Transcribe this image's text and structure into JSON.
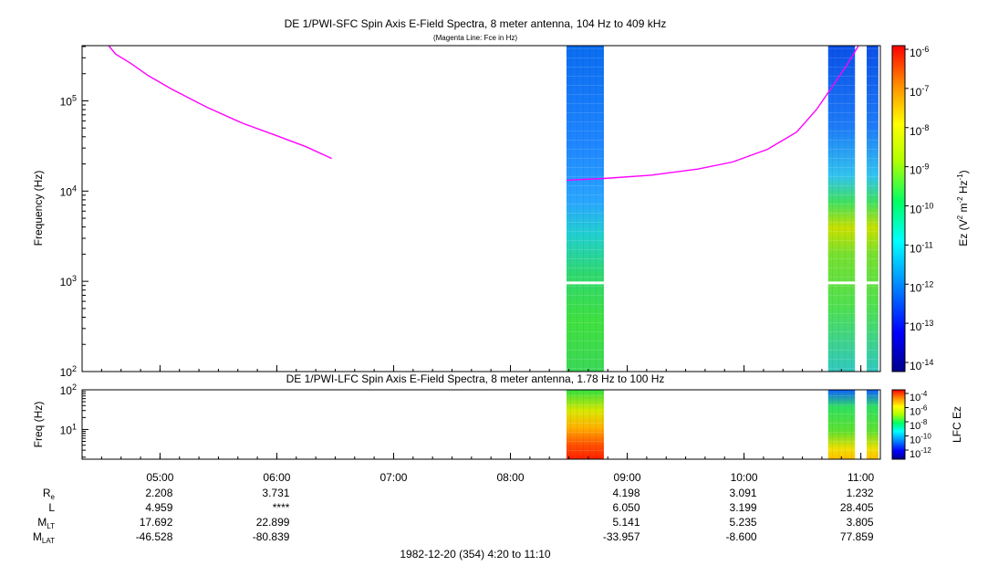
{
  "chart_data": [
    {
      "type": "heatmap",
      "panel": "SFC",
      "title": "DE 1/PWI-SFC  Spin Axis E-Field Spectra, 8 meter antenna, 104 Hz to 409 kHz",
      "subtitle": "(Magenta Line: Fce in Hz)",
      "ylabel": "Frequency (Hz)",
      "yscale": "log",
      "ylim": [
        100,
        409000
      ],
      "yticks": [
        {
          "value": 100,
          "label": "10",
          "exp": "2"
        },
        {
          "value": 1000,
          "label": "10",
          "exp": "3"
        },
        {
          "value": 10000,
          "label": "10",
          "exp": "4"
        },
        {
          "value": 100000,
          "label": "10",
          "exp": "5"
        }
      ],
      "xlim_hours": [
        4.333,
        11.167
      ],
      "colorbar": {
        "label_parts": [
          "Ez (V",
          "2",
          " m",
          "-2",
          " Hz",
          "-1",
          ")"
        ],
        "scale": "log",
        "range": [
          1e-14,
          1e-06
        ],
        "ticks": [
          {
            "label": "10",
            "exp": "-6"
          },
          {
            "label": "10",
            "exp": "-7"
          },
          {
            "label": "10",
            "exp": "-8"
          },
          {
            "label": "10",
            "exp": "-9"
          },
          {
            "label": "10",
            "exp": "-10"
          },
          {
            "label": "10",
            "exp": "-11"
          },
          {
            "label": "10",
            "exp": "-12"
          },
          {
            "label": "10",
            "exp": "-13"
          },
          {
            "label": "10",
            "exp": "-14"
          }
        ]
      },
      "data_blocks": [
        {
          "start_hour": 8.48,
          "end_hour": 8.8
        },
        {
          "start_hour": 10.72,
          "end_hour": 10.95
        },
        {
          "start_hour": 11.05,
          "end_hour": 11.15
        }
      ],
      "fce_line": {
        "name": "Fce",
        "color": "#ff00ff",
        "segments": [
          [
            [
              4.56,
              409000
            ],
            [
              4.62,
              330000
            ],
            [
              4.75,
              260000
            ],
            [
              4.9,
              190000
            ],
            [
              5.1,
              135000
            ],
            [
              5.4,
              85000
            ],
            [
              5.7,
              57000
            ],
            [
              6.0,
              41000
            ],
            [
              6.25,
              31000
            ],
            [
              6.47,
              23000
            ]
          ],
          [
            [
              8.48,
              13200
            ],
            [
              8.8,
              13800
            ],
            [
              9.2,
              15000
            ],
            [
              9.6,
              17500
            ],
            [
              9.9,
              21000
            ],
            [
              10.2,
              29000
            ],
            [
              10.45,
              45000
            ],
            [
              10.62,
              80000
            ],
            [
              10.75,
              140000
            ],
            [
              10.88,
              250000
            ],
            [
              10.98,
              409000
            ]
          ]
        ]
      }
    },
    {
      "type": "heatmap",
      "panel": "LFC",
      "title": "DE 1/PWI-LFC  Spin Axis E-Field Spectra, 8 meter antenna, 1.78 Hz to 100 Hz",
      "ylabel": "Freq (Hz)",
      "yscale": "log",
      "ylim": [
        1.78,
        100
      ],
      "yticks": [
        {
          "value": 10,
          "label": "10",
          "exp": "1"
        },
        {
          "value": 100,
          "label": "10",
          "exp": "2"
        }
      ],
      "colorbar": {
        "label": "LFC Ez",
        "scale": "log",
        "range": [
          1e-12,
          0.0001
        ],
        "ticks": [
          {
            "label": "10",
            "exp": "-4"
          },
          {
            "label": "10",
            "exp": "-6"
          },
          {
            "label": "10",
            "exp": "-8"
          },
          {
            "label": "10",
            "exp": "-10"
          },
          {
            "label": "10",
            "exp": "-12"
          }
        ]
      },
      "data_blocks": [
        {
          "start_hour": 8.48,
          "end_hour": 8.8
        },
        {
          "start_hour": 10.72,
          "end_hour": 10.95
        },
        {
          "start_hour": 11.05,
          "end_hour": 11.15
        }
      ]
    }
  ],
  "time_axis": {
    "ticks": [
      {
        "hour": 5,
        "label": "05:00"
      },
      {
        "hour": 6,
        "label": "06:00"
      },
      {
        "hour": 7,
        "label": "07:00"
      },
      {
        "hour": 8,
        "label": "08:00"
      },
      {
        "hour": 9,
        "label": "09:00"
      },
      {
        "hour": 10,
        "label": "10:00"
      },
      {
        "hour": 11,
        "label": "11:00"
      }
    ],
    "caption": "1982-12-20 (354) 4:20 to 11:10"
  },
  "ephemeris": [
    {
      "label": "R",
      "sub": "e",
      "values": [
        {
          "hour": 5,
          "text": "2.208"
        },
        {
          "hour": 6,
          "text": "3.731"
        },
        {
          "hour": 9,
          "text": "4.198"
        },
        {
          "hour": 10,
          "text": "3.091"
        },
        {
          "hour": 11,
          "text": "1.232"
        }
      ]
    },
    {
      "label": "L",
      "sub": "",
      "values": [
        {
          "hour": 5,
          "text": "4.959"
        },
        {
          "hour": 6,
          "text": "****"
        },
        {
          "hour": 9,
          "text": "6.050"
        },
        {
          "hour": 10,
          "text": "3.199"
        },
        {
          "hour": 11,
          "text": "28.405"
        }
      ]
    },
    {
      "label": "M",
      "sub": "LT",
      "values": [
        {
          "hour": 5,
          "text": "17.692"
        },
        {
          "hour": 6,
          "text": "22.899"
        },
        {
          "hour": 9,
          "text": "5.141"
        },
        {
          "hour": 10,
          "text": "5.235"
        },
        {
          "hour": 11,
          "text": "3.805"
        }
      ]
    },
    {
      "label": "M",
      "sub": "LAT",
      "values": [
        {
          "hour": 5,
          "text": "-46.528"
        },
        {
          "hour": 6,
          "text": "-80.839"
        },
        {
          "hour": 9,
          "text": "-33.957"
        },
        {
          "hour": 10,
          "text": "-8.600"
        },
        {
          "hour": 11,
          "text": "77.859"
        }
      ]
    }
  ]
}
